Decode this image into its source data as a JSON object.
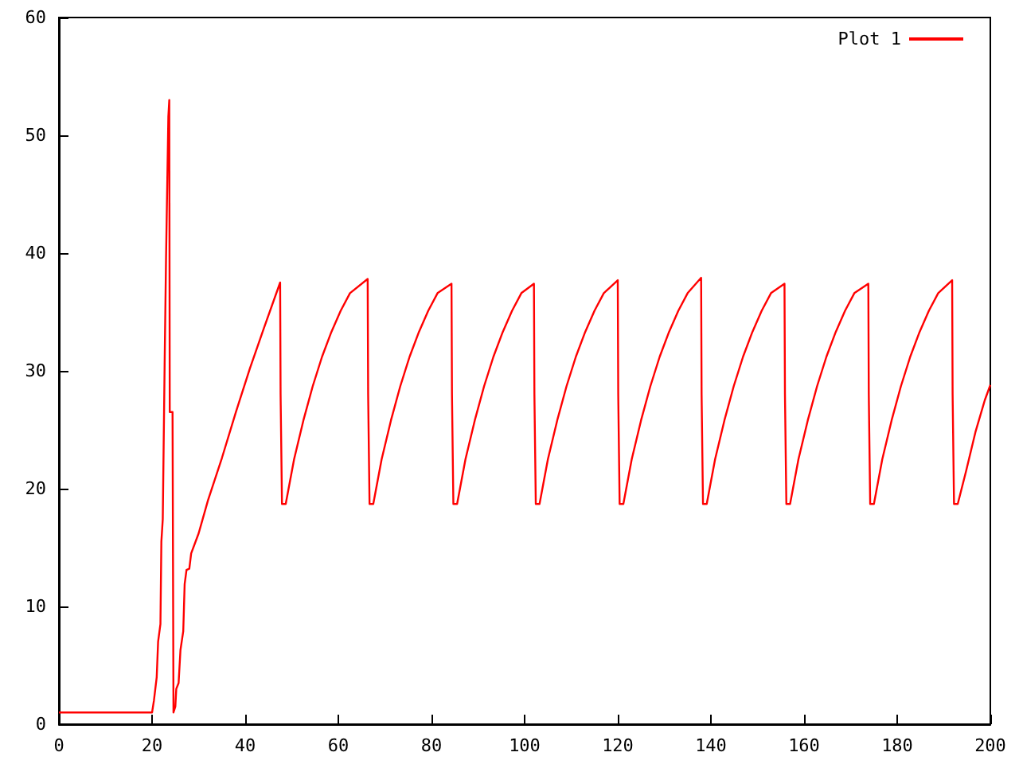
{
  "chart_data": {
    "type": "line",
    "xlim": [
      0,
      200
    ],
    "xticks": [
      0,
      20,
      40,
      60,
      80,
      100,
      120,
      140,
      160,
      180,
      200
    ],
    "ylim": [
      0,
      60
    ],
    "yticks": [
      0,
      10,
      20,
      30,
      40,
      50,
      60
    ],
    "grid": false,
    "legend": "top right",
    "marker": "none",
    "line_style": "solid",
    "series": [
      {
        "name": "Plot 1",
        "color": "#ff0000",
        "x": [
          0,
          20,
          20.4,
          21,
          21.3,
          21.8,
          22,
          22.3,
          22.7,
          23,
          23.5,
          23.7,
          23.8,
          24.4,
          24.5,
          24.6,
          25,
          25.2,
          25.7,
          26.1,
          26.7,
          27,
          27.4,
          28,
          28.4,
          30,
          32,
          35,
          38,
          41,
          44,
          47.5,
          47.6,
          47.8,
          47.9,
          48.7,
          50.5,
          52.5,
          54.5,
          56.5,
          58.5,
          60.5,
          62.5,
          66.3,
          66.4,
          66.6,
          66.7,
          67.5,
          69.3,
          71.3,
          73.3,
          75.3,
          77.3,
          79.3,
          81.3,
          84.3,
          84.4,
          84.6,
          84.7,
          85.5,
          87.3,
          89.3,
          91.3,
          93.3,
          95.3,
          97.3,
          99.3,
          102,
          102.1,
          102.3,
          102.4,
          103.2,
          105,
          107,
          109,
          111,
          113,
          115,
          117,
          120,
          120.1,
          120.3,
          120.4,
          121.2,
          123,
          125,
          127,
          129,
          131,
          133,
          135,
          137.9,
          138,
          138.2,
          138.3,
          139.1,
          140.9,
          142.9,
          144.9,
          146.9,
          148.9,
          150.9,
          152.9,
          155.8,
          155.9,
          156.1,
          156.2,
          157,
          158.8,
          160.8,
          162.8,
          164.8,
          166.8,
          168.8,
          170.8,
          173.8,
          173.9,
          174.1,
          174.2,
          175,
          176.8,
          178.8,
          180.8,
          182.8,
          184.8,
          186.8,
          188.8,
          191.8,
          191.9,
          192.1,
          192.2,
          193,
          194.8,
          196.8,
          198.8,
          200
        ],
        "values": [
          1,
          1,
          2,
          4,
          7,
          8.5,
          15.5,
          17.4,
          30.5,
          39.5,
          51.6,
          53,
          26.5,
          26.5,
          13.8,
          1,
          1.5,
          3,
          3.5,
          6.3,
          7.9,
          11.9,
          13.1,
          13.2,
          14.5,
          16.2,
          19,
          22.6,
          26.5,
          30.2,
          33.6,
          37.5,
          28,
          28,
          18.7,
          18.7,
          22.5,
          25.8,
          28.7,
          31.2,
          33.3,
          35.1,
          36.6,
          37.8,
          28,
          28,
          18.7,
          18.7,
          22.5,
          25.8,
          28.7,
          31.2,
          33.3,
          35.1,
          36.6,
          37.4,
          28,
          28,
          18.7,
          18.7,
          22.5,
          25.8,
          28.7,
          31.2,
          33.3,
          35.1,
          36.6,
          37.4,
          28,
          28,
          18.7,
          18.7,
          22.5,
          25.8,
          28.7,
          31.2,
          33.3,
          35.1,
          36.6,
          37.7,
          28,
          28,
          18.7,
          18.7,
          22.5,
          25.8,
          28.7,
          31.2,
          33.3,
          35.1,
          36.6,
          37.9,
          28,
          28,
          18.7,
          18.7,
          22.5,
          25.8,
          28.7,
          31.2,
          33.3,
          35.1,
          36.6,
          37.4,
          28,
          28,
          18.7,
          18.7,
          22.5,
          25.8,
          28.7,
          31.2,
          33.3,
          35.1,
          36.6,
          37.4,
          28,
          28,
          18.7,
          18.7,
          22.5,
          25.8,
          28.7,
          31.2,
          33.3,
          35.1,
          36.6,
          37.7,
          28,
          28,
          18.7,
          18.7,
          21.5,
          24.8,
          27.5,
          28.8
        ]
      }
    ]
  }
}
